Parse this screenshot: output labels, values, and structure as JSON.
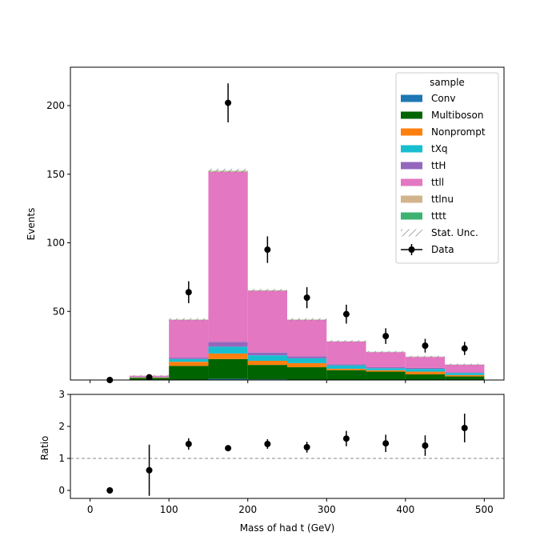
{
  "chart_data": {
    "type": "bar",
    "stacked": true,
    "ylabel": "Events",
    "xlabel": "Mass of had t (GeV)",
    "ratio_ylabel": "Ratio",
    "xlim": [
      -25,
      525
    ],
    "ylim": [
      0,
      228
    ],
    "ratio_ylim": [
      -0.25,
      3
    ],
    "bin_edges": [
      0,
      50,
      100,
      150,
      200,
      250,
      300,
      350,
      400,
      450,
      500
    ],
    "x_ticks": [
      "0",
      "100",
      "200",
      "300",
      "400",
      "500"
    ],
    "x_tick_values": [
      0,
      100,
      200,
      300,
      400,
      500
    ],
    "y_ticks": [
      "50",
      "100",
      "150",
      "200"
    ],
    "y_tick_values": [
      50,
      100,
      150,
      200
    ],
    "ratio_ticks": [
      "0",
      "1",
      "2",
      "3"
    ],
    "ratio_tick_values": [
      0,
      1,
      2,
      3
    ],
    "ratio_reference": 1,
    "legend": {
      "title": "sample",
      "position": "top-right",
      "stat_label": "Stat. Unc.",
      "data_label": "Data"
    },
    "series": [
      {
        "name": "Conv",
        "color": "#1f77b4",
        "values": [
          0,
          0,
          0.3,
          0.8,
          0.5,
          0.3,
          0.2,
          0.1,
          0.1,
          0.1
        ]
      },
      {
        "name": "Multiboson",
        "color": "#006400",
        "values": [
          0,
          1.5,
          10,
          14.5,
          10.5,
          9,
          7,
          6,
          4,
          2.5
        ]
      },
      {
        "name": "Nonprompt",
        "color": "#ff7f0e",
        "values": [
          0,
          0.3,
          3,
          4,
          3,
          3,
          1,
          1,
          2,
          1
        ]
      },
      {
        "name": "tXq",
        "color": "#17becf",
        "values": [
          0,
          0.2,
          2,
          5,
          4,
          3.5,
          2.5,
          1.5,
          2,
          1.5
        ]
      },
      {
        "name": "ttH",
        "color": "#9467bd",
        "values": [
          0,
          0.1,
          1,
          3.5,
          2,
          1.5,
          0.8,
          0.7,
          0.7,
          0.5
        ]
      },
      {
        "name": "ttll",
        "color": "#e377c2",
        "values": [
          0,
          1,
          27.5,
          124,
          45,
          26.5,
          16.5,
          11,
          8,
          5.5
        ]
      },
      {
        "name": "ttlnu",
        "color": "#d2b48c",
        "values": [
          0,
          0.05,
          0.2,
          0.5,
          0.3,
          0.2,
          0.1,
          0.1,
          0.1,
          0.1
        ]
      },
      {
        "name": "tttt",
        "color": "#3cb371",
        "values": [
          0,
          0,
          0.1,
          0.2,
          0.1,
          0.1,
          0.1,
          0.1,
          0.1,
          0.1
        ]
      }
    ],
    "mc_stat_unc": [
      0,
      0.5,
      1,
      1.5,
      1,
      1,
      0.8,
      0.7,
      0.7,
      0.6
    ],
    "data": {
      "x": [
        25,
        75,
        125,
        175,
        225,
        275,
        325,
        375,
        425,
        475
      ],
      "y": [
        0,
        2,
        64,
        202,
        95,
        60,
        48,
        32,
        25,
        23
      ],
      "yerr": [
        0,
        1.4,
        8,
        14.2,
        9.7,
        7.7,
        6.9,
        5.7,
        5,
        4.8
      ]
    },
    "ratio": {
      "x": [
        25,
        75,
        125,
        175,
        225,
        275,
        325,
        375,
        425,
        475
      ],
      "y": [
        0,
        0.63,
        1.45,
        1.32,
        1.45,
        1.35,
        1.62,
        1.47,
        1.4,
        1.95
      ],
      "yerr": [
        0,
        0.8,
        0.18,
        0.09,
        0.15,
        0.17,
        0.24,
        0.27,
        0.32,
        0.45
      ]
    }
  }
}
